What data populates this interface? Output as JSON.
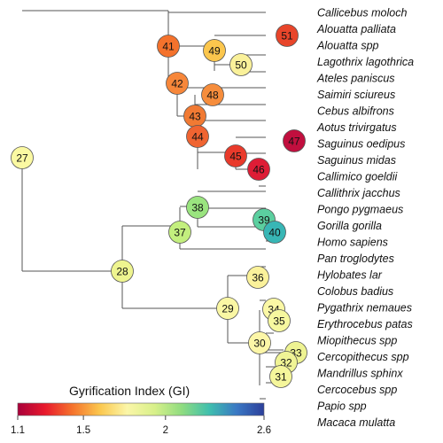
{
  "tree": {
    "taxa": [
      {
        "name": "Callicebus moloch",
        "color": "#111111"
      },
      {
        "name": "Alouatta palliata",
        "color": "#111111"
      },
      {
        "name": "Alouatta spp",
        "color": "#111111"
      },
      {
        "name": "Lagothrix lagothrica",
        "color": "#111111"
      },
      {
        "name": "Ateles paniscus",
        "color": "#111111"
      },
      {
        "name": "Saimiri sciureus",
        "color": "#111111"
      },
      {
        "name": "Cebus albifrons",
        "color": "#111111"
      },
      {
        "name": "Aotus trivirgatus",
        "color": "#111111"
      },
      {
        "name": "Saguinus oedipus",
        "color": "#111111"
      },
      {
        "name": "Saguinus midas",
        "color": "#111111"
      },
      {
        "name": "Callimico goeldii",
        "color": "#111111"
      },
      {
        "name": "Callithrix jacchus",
        "color": "#e8192c"
      },
      {
        "name": "Pongo pygmaeus",
        "color": "#111111"
      },
      {
        "name": "Gorilla gorilla",
        "color": "#111111"
      },
      {
        "name": "Homo sapiens",
        "color": "#111111"
      },
      {
        "name": "Pan troglodytes",
        "color": "#111111"
      },
      {
        "name": "Hylobates lar",
        "color": "#111111"
      },
      {
        "name": "Colobus badius",
        "color": "#111111"
      },
      {
        "name": "Pygathrix nemaues",
        "color": "#111111"
      },
      {
        "name": "Erythrocebus patas",
        "color": "#111111"
      },
      {
        "name": "Miopithecus spp",
        "color": "#111111"
      },
      {
        "name": "Cercopithecus spp",
        "color": "#111111"
      },
      {
        "name": "Mandrillus sphinx",
        "color": "#111111"
      },
      {
        "name": "Cercocebus spp",
        "color": "#111111"
      },
      {
        "name": "Papio spp",
        "color": "#111111"
      },
      {
        "name": "Macaca mulatta",
        "color": "#111111"
      }
    ],
    "nodes": [
      {
        "id": "27",
        "color": "#fbf9a2"
      },
      {
        "id": "41",
        "color": "#f4722c"
      },
      {
        "id": "42",
        "color": "#f7873a"
      },
      {
        "id": "49",
        "color": "#fbc64d"
      },
      {
        "id": "51",
        "color": "#e8452a"
      },
      {
        "id": "50",
        "color": "#faf19a"
      },
      {
        "id": "43",
        "color": "#f17a33"
      },
      {
        "id": "48",
        "color": "#f68d3c"
      },
      {
        "id": "44",
        "color": "#f06431"
      },
      {
        "id": "45",
        "color": "#e93a2b"
      },
      {
        "id": "47",
        "color": "#c10f3e"
      },
      {
        "id": "46",
        "color": "#de1d36"
      },
      {
        "id": "28",
        "color": "#eef48f"
      },
      {
        "id": "37",
        "color": "#c3ef7e"
      },
      {
        "id": "38",
        "color": "#9ae47f"
      },
      {
        "id": "39",
        "color": "#5bcf9f"
      },
      {
        "id": "40",
        "color": "#38b6b5"
      },
      {
        "id": "29",
        "color": "#faf7a4"
      },
      {
        "id": "36",
        "color": "#fbf29b"
      },
      {
        "id": "30",
        "color": "#fcf6a7"
      },
      {
        "id": "34",
        "color": "#fbf8a5"
      },
      {
        "id": "35",
        "color": "#f6f89f"
      },
      {
        "id": "33",
        "color": "#eef392"
      },
      {
        "id": "32",
        "color": "#f0f495"
      },
      {
        "id": "31",
        "color": "#f5f69b"
      }
    ]
  },
  "legend": {
    "title": "Gyrification Index (GI)",
    "ticks": [
      "1.1",
      "1.5",
      "2",
      "2.6"
    ],
    "tick_values": [
      1.1,
      1.5,
      2.0,
      2.6
    ],
    "range": [
      1.1,
      2.6
    ],
    "gradient_colors": [
      "#a8003a",
      "#e8192c",
      "#f5732c",
      "#fbc74e",
      "#fbf6a8",
      "#d8f08a",
      "#8fdc80",
      "#3fbfae",
      "#3a78c4",
      "#2c3f9a"
    ]
  }
}
